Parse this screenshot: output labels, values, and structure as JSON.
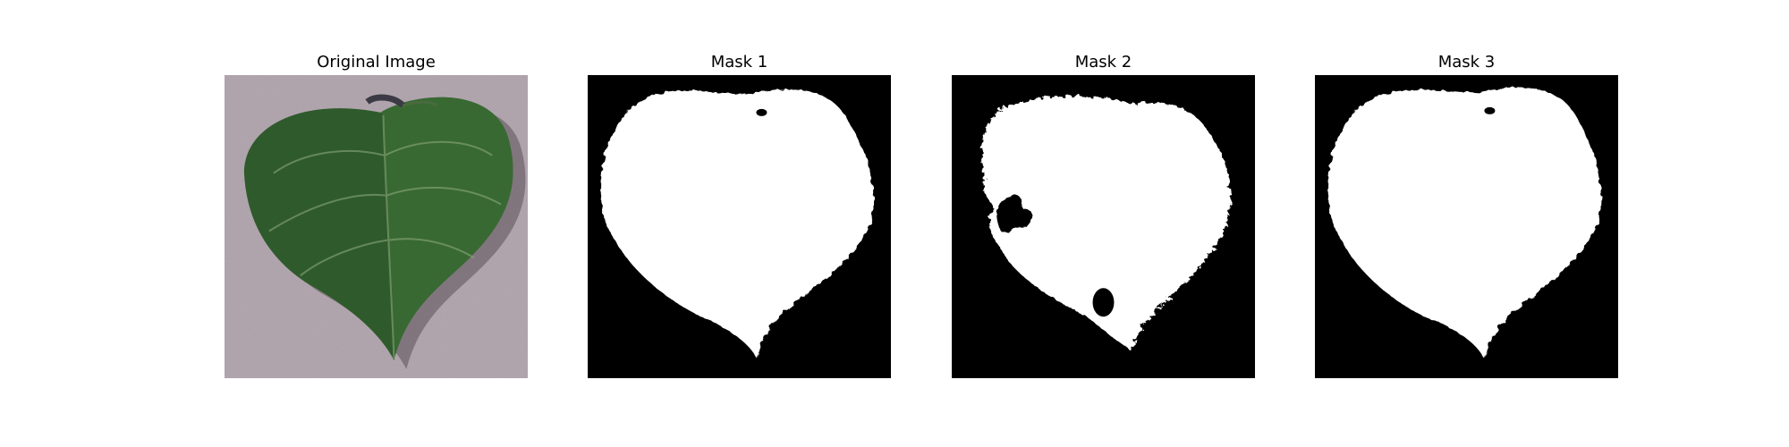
{
  "panels": [
    {
      "title": "Original Image"
    },
    {
      "title": "Mask 1"
    },
    {
      "title": "Mask 2"
    },
    {
      "title": "Mask 3"
    }
  ],
  "colors": {
    "figure_background": "#ffffff",
    "mask_background": "#000000",
    "mask_foreground": "#ffffff",
    "leaf_green": "#2f5a2c",
    "surface_gray": "#aea1ab"
  }
}
